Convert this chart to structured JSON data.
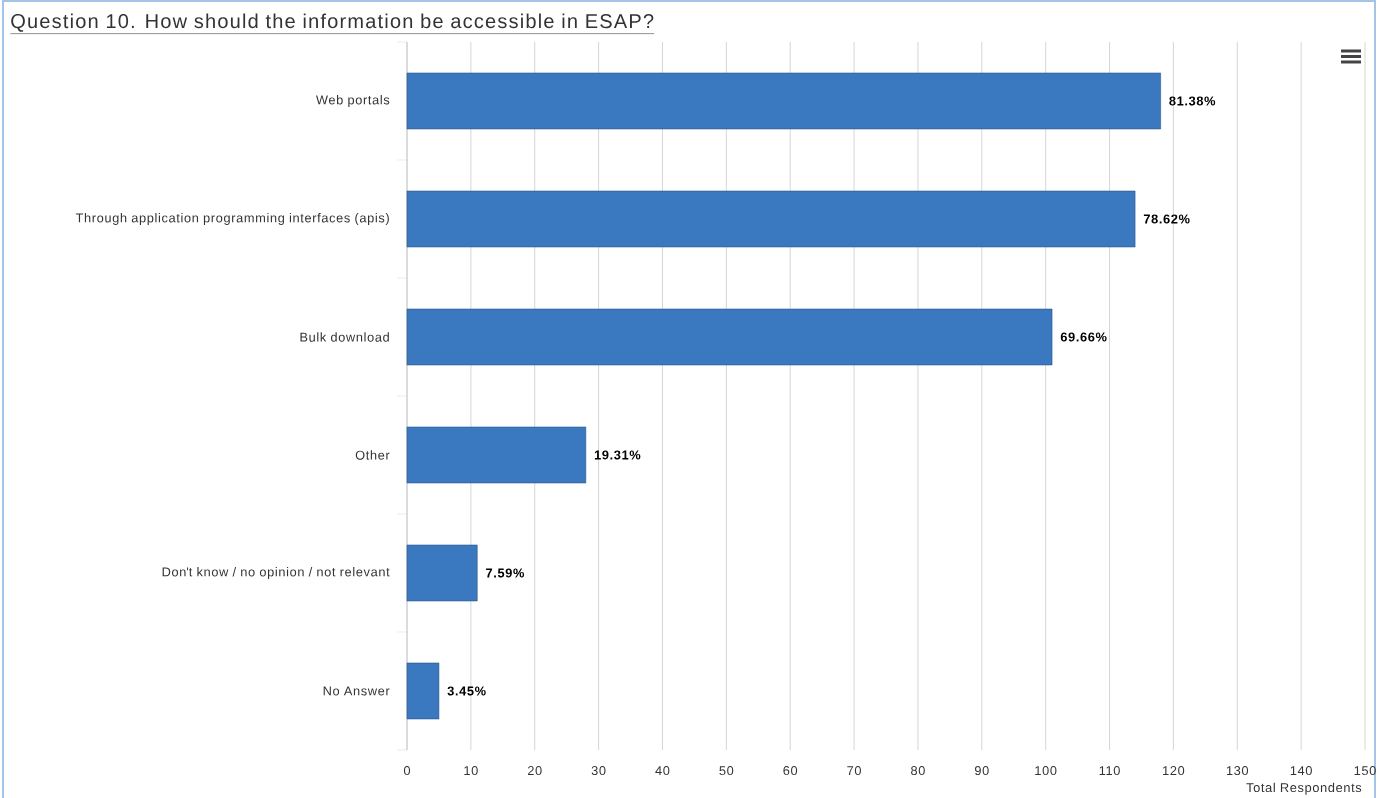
{
  "chart_data": {
    "type": "bar",
    "orientation": "horizontal",
    "title": "Question 10. How should the information be accessible in ESAP?",
    "xlabel": "Total Respondents",
    "categories": [
      "Web portals",
      "Through application programming interfaces (apis)",
      "Bulk download",
      "Other",
      "Don't know / no opinion / not relevant",
      "No Answer"
    ],
    "values": [
      118,
      114,
      101,
      28,
      11,
      5
    ],
    "annotations": [
      {
        "text": "81.38%",
        "x": 118,
        "y": "Web portals"
      },
      {
        "text": "78.62%",
        "x": 114,
        "y": "Through application programming interfaces (apis)"
      },
      {
        "text": "69.66%",
        "x": 101,
        "y": "Bulk download"
      },
      {
        "text": "19.31%",
        "x": 28,
        "y": "Other"
      },
      {
        "text": "7.59%",
        "x": 11,
        "y": "Don't know / no opinion / not relevant"
      },
      {
        "text": "3.45%",
        "x": 5,
        "y": "No Answer"
      }
    ],
    "color": "#3a78c0",
    "xlim": [
      0,
      150
    ],
    "xticks": [
      0,
      10,
      20,
      30,
      40,
      50,
      60,
      70,
      80,
      90,
      100,
      110,
      120,
      130,
      140,
      150
    ],
    "grid": "x"
  }
}
